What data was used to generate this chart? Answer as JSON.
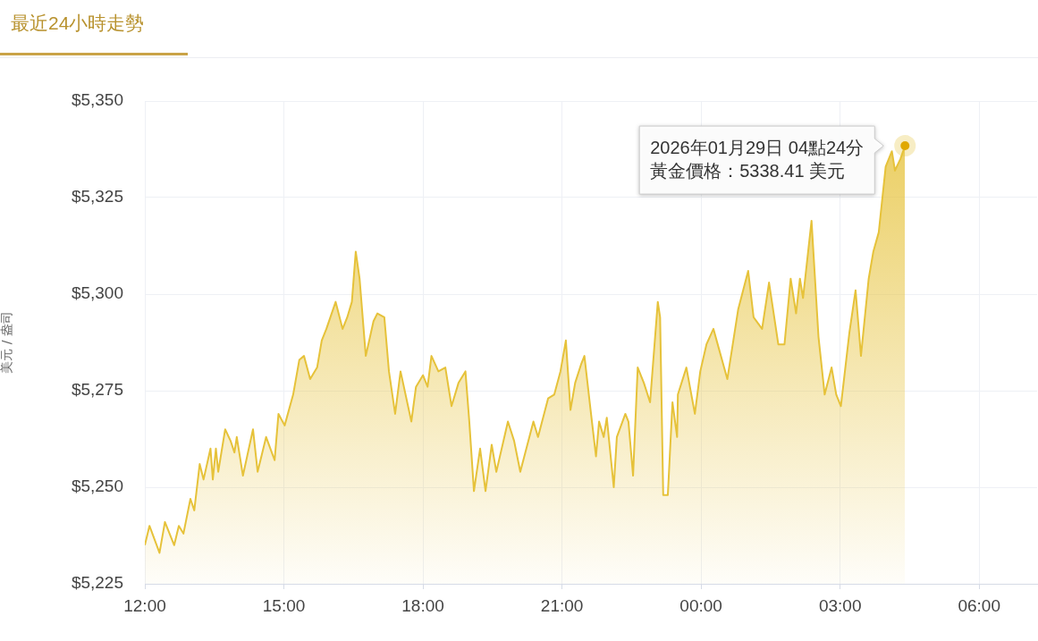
{
  "chart_data": {
    "type": "area",
    "title": "最近24小時走勢",
    "ylabel": "美元 / 盎司",
    "xlim": [
      "2026-01-28T12:00",
      "2026-01-29T07:15"
    ],
    "xticks": [
      {
        "value": "2026-01-28T12:00",
        "label": "12:00"
      },
      {
        "value": "2026-01-28T15:00",
        "label": "15:00"
      },
      {
        "value": "2026-01-28T18:00",
        "label": "18:00"
      },
      {
        "value": "2026-01-28T21:00",
        "label": "21:00"
      },
      {
        "value": "2026-01-29T00:00",
        "label": "00:00"
      },
      {
        "value": "2026-01-29T03:00",
        "label": "03:00"
      },
      {
        "value": "2026-01-29T06:00",
        "label": "06:00"
      }
    ],
    "ylim": [
      5225,
      5350
    ],
    "yticks": [
      {
        "value": 5225,
        "label": "$5,225"
      },
      {
        "value": 5250,
        "label": "$5,250"
      },
      {
        "value": 5275,
        "label": "$5,275"
      },
      {
        "value": 5300,
        "label": "$5,300"
      },
      {
        "value": 5325,
        "label": "$5,325"
      },
      {
        "value": 5350,
        "label": "$5,350"
      }
    ],
    "grid": true,
    "series": [
      {
        "color": "#e6c23a",
        "x": [
          "2026-01-28T12:00",
          "2026-01-28T12:06",
          "2026-01-28T12:19",
          "2026-01-28T12:26",
          "2026-01-28T12:38",
          "2026-01-28T12:44",
          "2026-01-28T12:50",
          "2026-01-28T12:59",
          "2026-01-28T13:04",
          "2026-01-28T13:11",
          "2026-01-28T13:16",
          "2026-01-28T13:25",
          "2026-01-28T13:28",
          "2026-01-28T13:32",
          "2026-01-28T13:35",
          "2026-01-28T13:44",
          "2026-01-28T13:51",
          "2026-01-28T13:56",
          "2026-01-28T13:59",
          "2026-01-28T14:07",
          "2026-01-28T14:20",
          "2026-01-28T14:26",
          "2026-01-28T14:37",
          "2026-01-28T14:48",
          "2026-01-28T14:53",
          "2026-01-28T15:01",
          "2026-01-28T15:12",
          "2026-01-28T15:20",
          "2026-01-28T15:26",
          "2026-01-28T15:34",
          "2026-01-28T15:43",
          "2026-01-28T15:49",
          "2026-01-28T15:55",
          "2026-01-28T16:07",
          "2026-01-28T16:16",
          "2026-01-28T16:22",
          "2026-01-28T16:28",
          "2026-01-28T16:33",
          "2026-01-28T16:38",
          "2026-01-28T16:46",
          "2026-01-28T16:56",
          "2026-01-28T17:01",
          "2026-01-28T17:10",
          "2026-01-28T17:16",
          "2026-01-28T17:24",
          "2026-01-28T17:31",
          "2026-01-28T17:45",
          "2026-01-28T17:51",
          "2026-01-28T18:00",
          "2026-01-28T18:06",
          "2026-01-28T18:11",
          "2026-01-28T18:20",
          "2026-01-28T18:29",
          "2026-01-28T18:37",
          "2026-01-28T18:46",
          "2026-01-28T18:55",
          "2026-01-28T19:00",
          "2026-01-28T19:06",
          "2026-01-28T19:14",
          "2026-01-28T19:21",
          "2026-01-28T19:29",
          "2026-01-28T19:35",
          "2026-01-28T19:50",
          "2026-01-28T19:58",
          "2026-01-28T20:06",
          "2026-01-28T20:23",
          "2026-01-28T20:29",
          "2026-01-28T20:42",
          "2026-01-28T20:50",
          "2026-01-28T20:58",
          "2026-01-28T21:05",
          "2026-01-28T21:11",
          "2026-01-28T21:17",
          "2026-01-28T21:25",
          "2026-01-28T21:29",
          "2026-01-28T21:37",
          "2026-01-28T21:44",
          "2026-01-28T21:48",
          "2026-01-28T21:54",
          "2026-01-28T21:58",
          "2026-01-28T22:07",
          "2026-01-28T22:11",
          "2026-01-28T22:22",
          "2026-01-28T22:26",
          "2026-01-28T22:32",
          "2026-01-28T22:38",
          "2026-01-28T22:46",
          "2026-01-28T22:54",
          "2026-01-28T23:04",
          "2026-01-28T23:07",
          "2026-01-28T23:11",
          "2026-01-28T23:17",
          "2026-01-28T23:23",
          "2026-01-28T23:29",
          "2026-01-28T23:30",
          "2026-01-28T23:41",
          "2026-01-28T23:52",
          "2026-01-28T23:59",
          "2026-01-29T00:07",
          "2026-01-29T00:16",
          "2026-01-29T00:34",
          "2026-01-29T00:48",
          "2026-01-29T01:01",
          "2026-01-29T01:08",
          "2026-01-29T01:19",
          "2026-01-29T01:28",
          "2026-01-29T01:40",
          "2026-01-29T01:48",
          "2026-01-29T01:56",
          "2026-01-29T02:03",
          "2026-01-29T02:08",
          "2026-01-29T02:12",
          "2026-01-29T02:23",
          "2026-01-29T02:32",
          "2026-01-29T02:40",
          "2026-01-29T02:49",
          "2026-01-29T02:55",
          "2026-01-29T03:01",
          "2026-01-29T03:12",
          "2026-01-29T03:20",
          "2026-01-29T03:27",
          "2026-01-29T03:37",
          "2026-01-29T03:43",
          "2026-01-29T03:50",
          "2026-01-29T03:59",
          "2026-01-29T04:07",
          "2026-01-29T04:11",
          "2026-01-29T04:18",
          "2026-01-29T04:24"
        ],
        "values": [
          5235,
          5240,
          5233,
          5241,
          5235,
          5240,
          5238,
          5247,
          5244,
          5256,
          5252,
          5260,
          5252,
          5260,
          5254,
          5265,
          5262,
          5259,
          5263,
          5253,
          5265,
          5254,
          5263,
          5257,
          5269,
          5266,
          5274,
          5283,
          5284,
          5278,
          5281,
          5288,
          5291,
          5298,
          5291,
          5294,
          5298,
          5311,
          5304,
          5284,
          5293,
          5295,
          5294,
          5280,
          5269,
          5280,
          5267,
          5276,
          5279,
          5276,
          5284,
          5280,
          5281,
          5271,
          5277,
          5280,
          5267,
          5249,
          5260,
          5249,
          5261,
          5254,
          5267,
          5262,
          5254,
          5267,
          5263,
          5273,
          5274,
          5280,
          5288,
          5270,
          5277,
          5282,
          5284,
          5270,
          5258,
          5267,
          5263,
          5268,
          5250,
          5263,
          5269,
          5267,
          5253,
          5281,
          5277,
          5272,
          5298,
          5294,
          5248,
          5248,
          5272,
          5263,
          5274,
          5281,
          5269,
          5280,
          5287,
          5291,
          5278,
          5296,
          5306,
          5294,
          5291,
          5303,
          5287,
          5287,
          5304,
          5295,
          5304,
          5299,
          5319,
          5289,
          5274,
          5281,
          5274,
          5271,
          5290,
          5301,
          5284,
          5304,
          5311,
          5316,
          5333,
          5337,
          5332,
          5335,
          5338.41
        ]
      }
    ],
    "annotations": [
      {
        "text": "2026年01月29日 04點24分",
        "x": "2026-01-29T04:24",
        "y": 5338.41
      },
      "黃金價格：5338.41 美元"
    ]
  }
}
